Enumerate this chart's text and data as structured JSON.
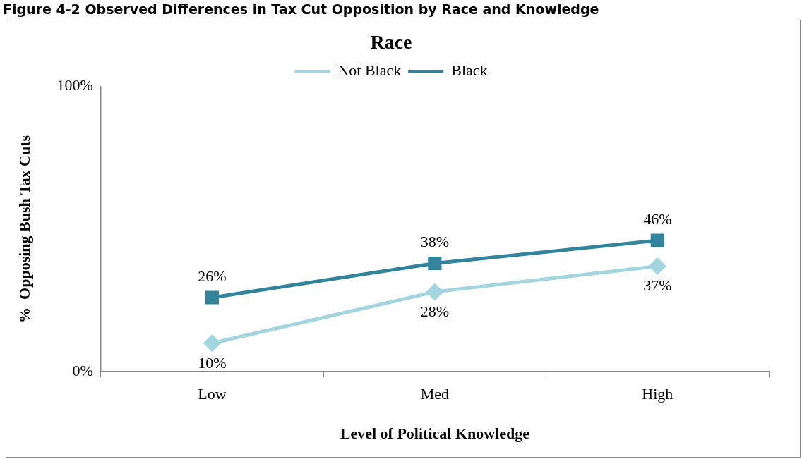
{
  "chart_data": {
    "type": "line",
    "title": "Race",
    "xlabel": "Level of Political Knowledge",
    "ylabel": "%  Opposing Bush Tax Cuts",
    "annotations": [
      "Figure 4-2  Observed Differences in Tax Cut Opposition by Race and Knowledge"
    ],
    "categories": [
      "Low",
      "Med",
      "High"
    ],
    "series": [
      {
        "name": "Not Black",
        "color": "#a2d5e0",
        "marker": "diamond",
        "values": [
          10,
          28,
          37
        ],
        "value_labels": [
          "10%",
          "28%",
          "37%"
        ]
      },
      {
        "name": "Black",
        "color": "#31849b",
        "marker": "square",
        "values": [
          26,
          38,
          46
        ],
        "value_labels": [
          "26%",
          "38%",
          "46%"
        ]
      }
    ],
    "ylim": [
      0,
      100
    ],
    "yticks": [
      {
        "value": 0,
        "label": "0%"
      },
      {
        "value": 100,
        "label": "100%"
      }
    ],
    "grid": false,
    "legend": "top",
    "line_style": "solid"
  }
}
